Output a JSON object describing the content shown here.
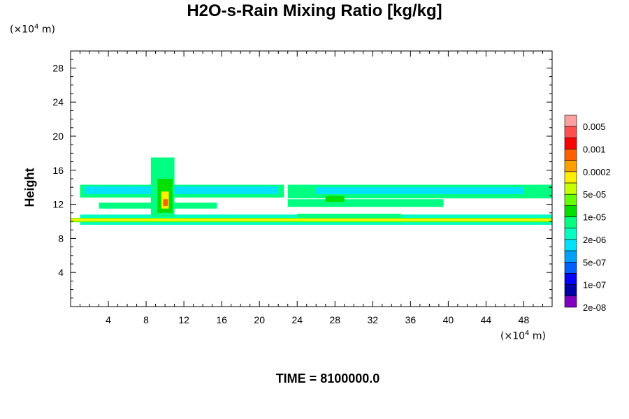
{
  "chart_data": {
    "type": "heatmap",
    "title": "H2O-s-Rain Mixing Ratio [kg/kg]",
    "xlabel": "",
    "ylabel": "Height",
    "x_unit": "(×10⁴ m)",
    "y_unit": "(×10⁴ m)",
    "footer": "TIME = 8100000.0",
    "xlim": [
      0,
      51
    ],
    "ylim": [
      0,
      30
    ],
    "x_ticks": [
      4,
      8,
      12,
      16,
      20,
      24,
      28,
      32,
      36,
      40,
      44,
      48
    ],
    "y_ticks": [
      4,
      8,
      12,
      16,
      20,
      24,
      28
    ],
    "colorbar": {
      "labels": [
        "0.005",
        "0.001",
        "0.0002",
        "5e-05",
        "1e-05",
        "2e-06",
        "5e-07",
        "1e-07",
        "2e-08"
      ],
      "colors": [
        "#ff9f9f",
        "#ff5050",
        "#ff0000",
        "#ff6000",
        "#ffa000",
        "#ffee00",
        "#c8ff00",
        "#64ff00",
        "#00e000",
        "#00ff80",
        "#00ffc0",
        "#00e0ff",
        "#00a0ff",
        "#0060ff",
        "#0000ff",
        "#0000a8",
        "#8000c0"
      ]
    },
    "regions": [
      {
        "x": [
          1.0,
          51.0
        ],
        "y": [
          9.6,
          10.8
        ],
        "level": "1e-06"
      },
      {
        "x": [
          0.0,
          51.0
        ],
        "y": [
          9.9,
          10.4
        ],
        "level": "2e-05"
      },
      {
        "x": [
          0.0,
          51.0
        ],
        "y": [
          10.05,
          10.3
        ],
        "level": "0.0002"
      },
      {
        "x": [
          1.0,
          22.6
        ],
        "y": [
          12.8,
          14.3
        ],
        "level": "2e-06"
      },
      {
        "x": [
          1.5,
          22.0
        ],
        "y": [
          13.2,
          14.1
        ],
        "level": "5e-07"
      },
      {
        "x": [
          23.0,
          51.0
        ],
        "y": [
          12.7,
          14.3
        ],
        "level": "2e-06"
      },
      {
        "x": [
          26.0,
          48.0
        ],
        "y": [
          13.2,
          14.0
        ],
        "level": "5e-07"
      },
      {
        "x": [
          3.0,
          15.5
        ],
        "y": [
          11.5,
          12.2
        ],
        "level": "2e-06"
      },
      {
        "x": [
          23.0,
          39.5
        ],
        "y": [
          11.7,
          12.6
        ],
        "level": "2e-06"
      },
      {
        "x": [
          24.0,
          35.0
        ],
        "y": [
          10.4,
          10.9
        ],
        "level": "2e-06"
      },
      {
        "x": [
          8.5,
          11.0
        ],
        "y": [
          10.5,
          17.5
        ],
        "level": "2e-06"
      },
      {
        "x": [
          9.2,
          10.8
        ],
        "y": [
          11.0,
          15.0
        ],
        "level": "1e-05"
      },
      {
        "x": [
          9.6,
          10.4
        ],
        "y": [
          11.5,
          13.5
        ],
        "level": "0.0002"
      },
      {
        "x": [
          9.8,
          10.3
        ],
        "y": [
          11.8,
          12.6
        ],
        "level": "0.001"
      },
      {
        "x": [
          27.0,
          29.0
        ],
        "y": [
          12.3,
          13.0
        ],
        "level": "1e-05"
      }
    ]
  }
}
